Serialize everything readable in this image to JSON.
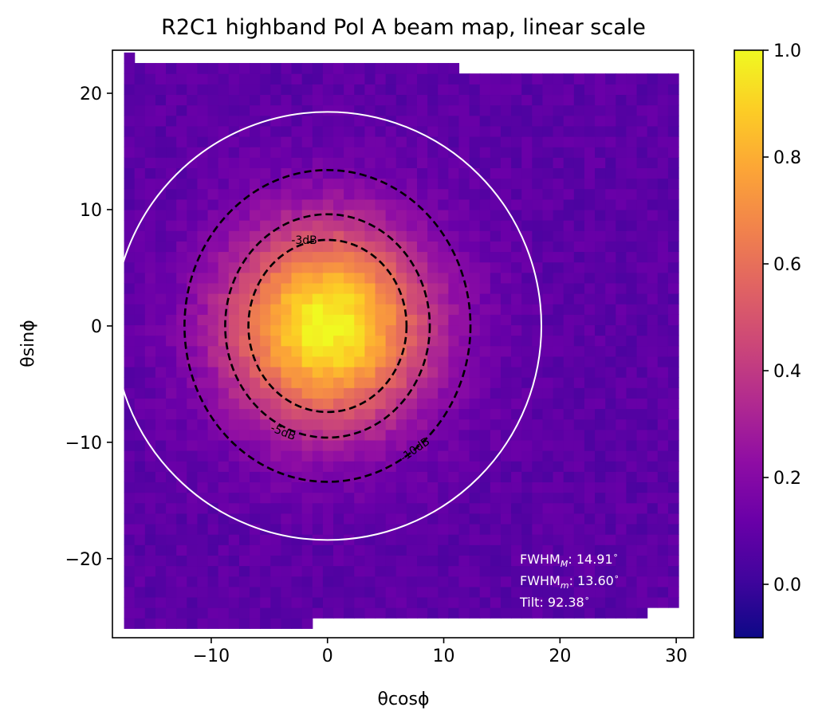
{
  "chart_data": {
    "type": "heatmap",
    "title": "R2C1 highband Pol A beam map, linear scale",
    "xlabel": "θcosϕ",
    "ylabel": "θsinϕ",
    "xlim": [
      -18.5,
      31.5
    ],
    "ylim": [
      -26.8,
      23.7
    ],
    "xticks": [
      -10,
      0,
      10,
      20,
      30
    ],
    "xtick_labels": [
      "−10",
      "0",
      "10",
      "20",
      "30"
    ],
    "yticks": [
      -20,
      -10,
      0,
      10,
      20
    ],
    "ytick_labels": [
      "−20",
      "−10",
      "0",
      "10",
      "20"
    ],
    "colormap": "plasma",
    "color_range": [
      -0.1,
      1.0
    ],
    "colorbar_ticks": [
      0.0,
      0.2,
      0.4,
      0.6,
      0.8,
      1.0
    ],
    "colorbar_tick_labels": [
      "0.0",
      "0.2",
      "0.4",
      "0.6",
      "0.8",
      "1.0"
    ],
    "beam": {
      "center": [
        0.0,
        0.0
      ],
      "fwhm_major_deg": 14.91,
      "fwhm_minor_deg": 13.6,
      "tilt_deg": 92.38,
      "background_level": 0.08,
      "noise_level": 0.04
    },
    "data_extent": {
      "corners": [
        [
          -17.5,
          23.0
        ],
        [
          30.0,
          21.5
        ],
        [
          30.0,
          -24.5
        ],
        [
          -17.5,
          -26.0
        ]
      ]
    },
    "contours": [
      {
        "label": "-3dB",
        "semi_axis_x": 6.8,
        "semi_axis_y": 7.4,
        "style": "dashed",
        "color": "#000000"
      },
      {
        "label": "-5dB",
        "semi_axis_x": 8.8,
        "semi_axis_y": 9.6,
        "style": "dashed",
        "color": "#000000"
      },
      {
        "label": "-10dB",
        "semi_axis_x": 12.3,
        "semi_axis_y": 13.4,
        "style": "dashed",
        "color": "#000000"
      }
    ],
    "outer_circle": {
      "radius": 18.4,
      "color": "#ffffff"
    },
    "annotations": {
      "fwhm_major": "FWHM_M: 14.91°",
      "fwhm_minor": "FWHM_m: 13.60°",
      "tilt": "Tilt: 92.38°"
    }
  }
}
